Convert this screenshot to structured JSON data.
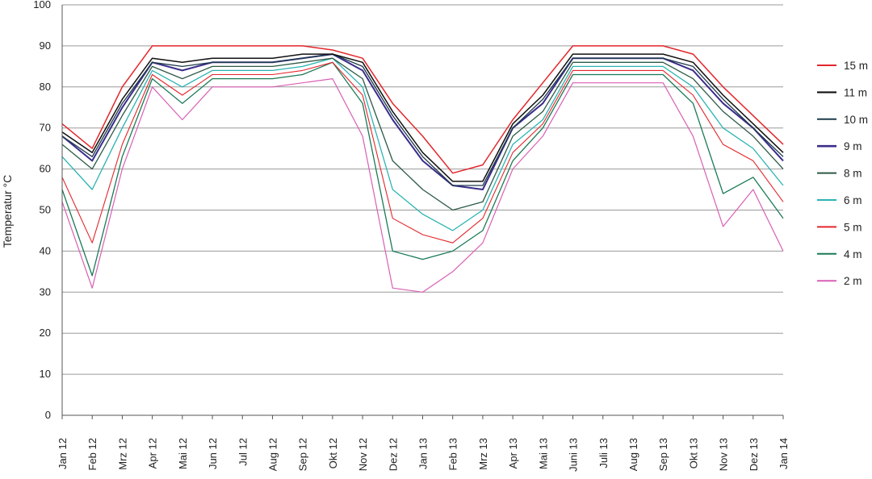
{
  "chart_data": {
    "type": "line",
    "title": "",
    "xlabel": "",
    "ylabel": "Temperatur °C",
    "ylim": [
      0,
      100
    ],
    "yticks": [
      0,
      10,
      20,
      30,
      40,
      50,
      60,
      70,
      80,
      90,
      100
    ],
    "grid": "horizontal",
    "legend_position": "right",
    "categories": [
      "Jan 12",
      "Feb 12",
      "Mrz 12",
      "Apr 12",
      "Mai 12",
      "Jun 12",
      "Jul 12",
      "Aug 12",
      "Sep 12",
      "Okt 12",
      "Nov 12",
      "Dez 12",
      "Jan 13",
      "Feb 13",
      "Mrz 13",
      "Apr 13",
      "Mai 13",
      "Juni 13",
      "Juli 13",
      "Aug 13",
      "Sep 13",
      "Okt 13",
      "Nov 13",
      "Dez 13",
      "Jan 14"
    ],
    "series": [
      {
        "name": "15 m",
        "color": "#e3262b",
        "width": 1.5,
        "values": [
          71,
          65,
          80,
          90,
          90,
          90,
          90,
          90,
          90,
          89,
          87,
          76,
          68,
          59,
          61,
          72,
          81,
          90,
          90,
          90,
          90,
          88,
          80,
          73,
          66
        ]
      },
      {
        "name": "11 m",
        "color": "#111111",
        "width": 1.5,
        "values": [
          69,
          64,
          77,
          87,
          86,
          87,
          87,
          87,
          88,
          88,
          86,
          74,
          64,
          57,
          57,
          71,
          78,
          88,
          88,
          88,
          88,
          86,
          78,
          71,
          64
        ]
      },
      {
        "name": "10 m",
        "color": "#1d3a4a",
        "width": 1.3,
        "values": [
          68,
          63,
          76,
          86,
          85,
          86,
          86,
          86,
          87,
          88,
          85,
          73,
          63,
          56,
          56,
          70,
          77,
          87,
          87,
          87,
          87,
          85,
          77,
          70,
          63
        ]
      },
      {
        "name": "9 m",
        "color": "#3a2d8a",
        "width": 2,
        "values": [
          68,
          62,
          75,
          86,
          84,
          86,
          86,
          86,
          87,
          88,
          84,
          72,
          62,
          56,
          55,
          70,
          76,
          87,
          87,
          87,
          87,
          84,
          76,
          70,
          62
        ]
      },
      {
        "name": "8 m",
        "color": "#2d5a45",
        "width": 1.3,
        "values": [
          66,
          60,
          73,
          85,
          82,
          85,
          85,
          85,
          86,
          87,
          82,
          62,
          55,
          50,
          52,
          68,
          74,
          86,
          86,
          86,
          86,
          82,
          74,
          68,
          60
        ]
      },
      {
        "name": "6 m",
        "color": "#2bb3b3",
        "width": 1.3,
        "values": [
          63,
          55,
          70,
          84,
          80,
          84,
          84,
          84,
          85,
          87,
          80,
          55,
          49,
          45,
          50,
          66,
          72,
          85,
          85,
          85,
          85,
          80,
          70,
          65,
          56
        ]
      },
      {
        "name": "5 m",
        "color": "#e3262b",
        "width": 1.1,
        "values": [
          58,
          42,
          66,
          83,
          78,
          83,
          83,
          83,
          84,
          86,
          78,
          48,
          44,
          42,
          48,
          64,
          71,
          84,
          84,
          84,
          84,
          78,
          66,
          62,
          52
        ]
      },
      {
        "name": "4 m",
        "color": "#1a7a55",
        "width": 1.3,
        "values": [
          55,
          34,
          63,
          82,
          76,
          82,
          82,
          82,
          83,
          86,
          76,
          40,
          38,
          40,
          45,
          62,
          70,
          83,
          83,
          83,
          83,
          76,
          54,
          58,
          48
        ]
      },
      {
        "name": "2 m",
        "color": "#d95fb5",
        "width": 1.2,
        "values": [
          52,
          31,
          60,
          80,
          72,
          80,
          80,
          80,
          81,
          82,
          68,
          31,
          30,
          35,
          42,
          60,
          68,
          81,
          81,
          81,
          81,
          68,
          46,
          55,
          40
        ]
      }
    ]
  }
}
